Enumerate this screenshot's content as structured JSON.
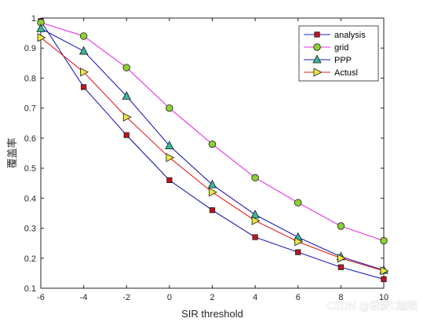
{
  "chart_data": {
    "type": "line",
    "xlabel": "SIR threshold",
    "ylabel": "覆盖率",
    "x": [
      -6,
      -4,
      -2,
      0,
      2,
      4,
      6,
      8,
      10
    ],
    "xlim": [
      -6,
      10
    ],
    "ylim": [
      0.1,
      1
    ],
    "xticks": [
      "-6",
      "-4",
      "-2",
      "0",
      "2",
      "4",
      "6",
      "8",
      "10"
    ],
    "yticks": [
      "0.1",
      "0.2",
      "0.3",
      "0.4",
      "0.5",
      "0.6",
      "0.7",
      "0.8",
      "0.9",
      "1"
    ],
    "grid": false,
    "legend_position": "top-right",
    "series": [
      {
        "name": "analysis",
        "marker": "square",
        "line_color": "#1f1fb4",
        "marker_fill": "#c0141c",
        "values": [
          0.99,
          0.77,
          0.61,
          0.46,
          0.36,
          0.27,
          0.22,
          0.17,
          0.13
        ]
      },
      {
        "name": "grid",
        "marker": "circle",
        "line_color": "#e632e6",
        "marker_fill": "#8cd032",
        "values": [
          0.985,
          0.94,
          0.835,
          0.7,
          0.58,
          0.468,
          0.385,
          0.307,
          0.258
        ]
      },
      {
        "name": "PPP",
        "marker": "triangle-up",
        "line_color": "#1f1fb4",
        "marker_fill": "#36b896",
        "values": [
          0.965,
          0.89,
          0.74,
          0.575,
          0.445,
          0.345,
          0.27,
          0.205,
          0.16
        ]
      },
      {
        "name": "Actusl",
        "marker": "triangle-right",
        "line_color": "#e02020",
        "marker_fill": "#e8e840",
        "values": [
          0.935,
          0.82,
          0.67,
          0.535,
          0.42,
          0.325,
          0.255,
          0.2,
          0.158
        ]
      }
    ]
  },
  "watermark": "CSDN @我爱C编程"
}
